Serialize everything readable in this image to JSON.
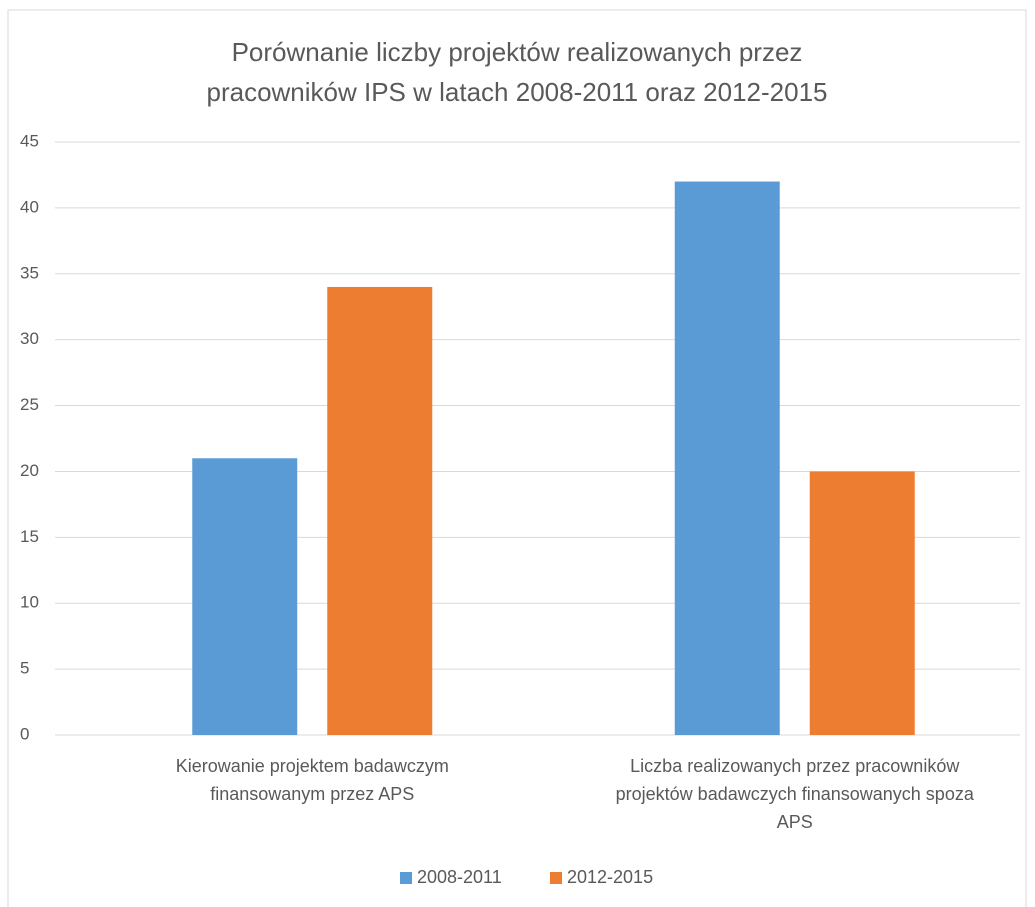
{
  "chart_data": {
    "type": "bar",
    "title": "Porównanie liczby projektów realizowanych przez pracowników IPS w latach 2008-2011 oraz 2012-2015",
    "categories": [
      "Kierowanie projektem badawczym finansowanym przez APS",
      "Liczba realizowanych przez pracowników projektów badawczych finansowanych spoza APS"
    ],
    "series": [
      {
        "name": "2008-2011",
        "color": "#5b9bd5",
        "values": [
          21,
          42
        ]
      },
      {
        "name": "2012-2015",
        "color": "#ed7d31",
        "values": [
          34,
          20
        ]
      }
    ],
    "ylim": [
      0,
      45
    ],
    "yticks": [
      0,
      5,
      10,
      15,
      20,
      25,
      30,
      35,
      40,
      45
    ],
    "grid": true,
    "legend": "bottom"
  }
}
